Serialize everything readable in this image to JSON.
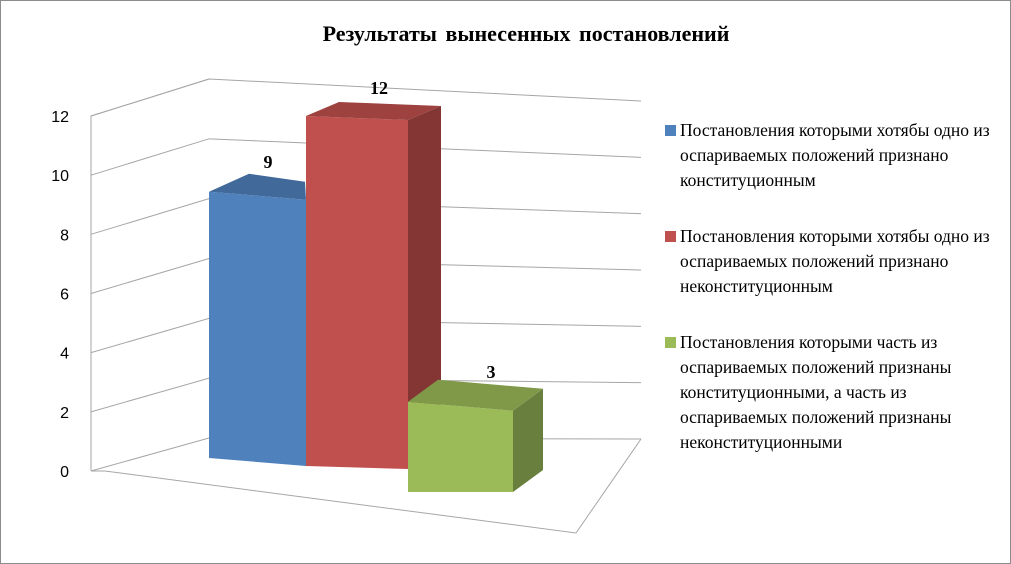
{
  "chart_data": {
    "type": "bar",
    "title": "Результаты  вынесенных  постановлений",
    "ylim": [
      0,
      12
    ],
    "yticks": [
      "0",
      "2",
      "4",
      "6",
      "8",
      "10",
      "12"
    ],
    "grid": true,
    "legend_position": "right",
    "three_d": true,
    "series": [
      {
        "name": "Постановления которыми хотябы одно из оспариваемых положений признано конституционным",
        "value": 9,
        "label": "9",
        "color": "#4F81BD"
      },
      {
        "name": "Постановления которыми хотябы одно из оспариваемых положений признано неконституционным",
        "value": 12,
        "label": "12",
        "color": "#C0504D"
      },
      {
        "name": "Постановления которыми часть из оспариваемых положений признаны конституционными, а часть из оспариваемых положений признаны неконституционными",
        "value": 3,
        "label": "3",
        "color": "#9BBB59"
      }
    ]
  }
}
